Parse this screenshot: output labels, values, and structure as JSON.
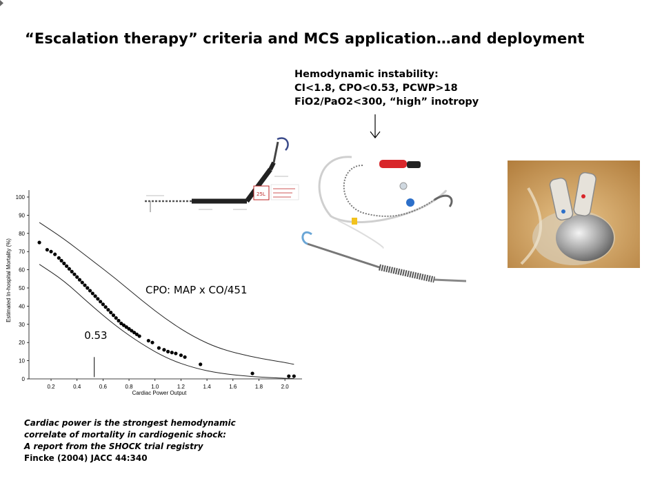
{
  "slide": {
    "title": "“Escalation therapy” criteria and MCS application…and deployment",
    "hemodynamic_criteria": {
      "heading": "Hemodynamic instability:",
      "line1": "CI<1.8, CPO<0.53, PCWP>18",
      "line2": "FiO2/PaO2<300, “high” inotropy"
    },
    "cpo_formula": "CPO: MAP x CO/451",
    "caption": {
      "line1": "Cardiac power is the strongest hemodynamic",
      "line2": "correlate of mortality in cardiogenic shock:",
      "line3": "A report from the SHOCK trial registry",
      "line4": "Fincke (2004) JACC 44:340"
    },
    "device_label": "25L",
    "colors": {
      "catheter_red": "#d8262a",
      "catheter_blue": "#2c6fc9",
      "catheter_yellow": "#f2c21d",
      "photo_bg": "#c9974f"
    }
  },
  "chart_data": {
    "type": "scatter",
    "xlabel": "Cardiac Power Output",
    "ylabel": "Estimated In-hospital Mortality (%)",
    "xticks": [
      "0.2",
      "0.4",
      "0.6",
      "0.8",
      "1.0",
      "1.2",
      "1.4",
      "1.6",
      "1.8",
      "2.0"
    ],
    "yticks": [
      "0",
      "10",
      "20",
      "30",
      "40",
      "50",
      "60",
      "70",
      "80",
      "90",
      "100"
    ],
    "xlim": [
      0.03,
      2.1
    ],
    "ylim": [
      0,
      100
    ],
    "grid": false,
    "threshold": {
      "x": 0.53,
      "label": "0.53"
    },
    "points": [
      [
        0.11,
        75
      ],
      [
        0.17,
        71
      ],
      [
        0.2,
        70
      ],
      [
        0.23,
        68.5
      ],
      [
        0.26,
        66.5
      ],
      [
        0.28,
        65
      ],
      [
        0.3,
        63.5
      ],
      [
        0.32,
        62
      ],
      [
        0.34,
        60.5
      ],
      [
        0.36,
        59
      ],
      [
        0.38,
        57.5
      ],
      [
        0.4,
        56
      ],
      [
        0.42,
        54.5
      ],
      [
        0.44,
        53
      ],
      [
        0.46,
        51.5
      ],
      [
        0.48,
        50
      ],
      [
        0.5,
        48.5
      ],
      [
        0.52,
        47
      ],
      [
        0.54,
        45.5
      ],
      [
        0.56,
        44
      ],
      [
        0.58,
        42.5
      ],
      [
        0.6,
        41
      ],
      [
        0.62,
        39.5
      ],
      [
        0.64,
        38
      ],
      [
        0.66,
        36.5
      ],
      [
        0.68,
        35
      ],
      [
        0.7,
        33.5
      ],
      [
        0.72,
        32
      ],
      [
        0.74,
        30.5
      ],
      [
        0.76,
        29.5
      ],
      [
        0.78,
        28.5
      ],
      [
        0.8,
        27.5
      ],
      [
        0.82,
        26.5
      ],
      [
        0.84,
        25.5
      ],
      [
        0.86,
        24.5
      ],
      [
        0.88,
        23.5
      ],
      [
        0.95,
        21
      ],
      [
        0.98,
        20
      ],
      [
        1.03,
        17
      ],
      [
        1.07,
        16
      ],
      [
        1.1,
        15
      ],
      [
        1.13,
        14.5
      ],
      [
        1.16,
        14
      ],
      [
        1.2,
        13
      ],
      [
        1.23,
        12
      ],
      [
        1.35,
        8
      ],
      [
        1.75,
        3
      ],
      [
        2.03,
        1.5
      ],
      [
        2.07,
        1.5
      ]
    ],
    "upper_band": [
      [
        0.11,
        86
      ],
      [
        0.3,
        77
      ],
      [
        0.5,
        66
      ],
      [
        0.7,
        55
      ],
      [
        0.9,
        43
      ],
      [
        1.1,
        32
      ],
      [
        1.3,
        23
      ],
      [
        1.5,
        16.5
      ],
      [
        1.75,
        12
      ],
      [
        2.0,
        9
      ],
      [
        2.07,
        8
      ]
    ],
    "lower_band": [
      [
        0.11,
        63
      ],
      [
        0.3,
        54
      ],
      [
        0.5,
        41
      ],
      [
        0.7,
        29
      ],
      [
        0.9,
        19
      ],
      [
        1.1,
        11
      ],
      [
        1.3,
        6
      ],
      [
        1.5,
        3
      ],
      [
        1.75,
        1.2
      ],
      [
        2.0,
        0.3
      ],
      [
        2.07,
        0.2
      ]
    ]
  }
}
